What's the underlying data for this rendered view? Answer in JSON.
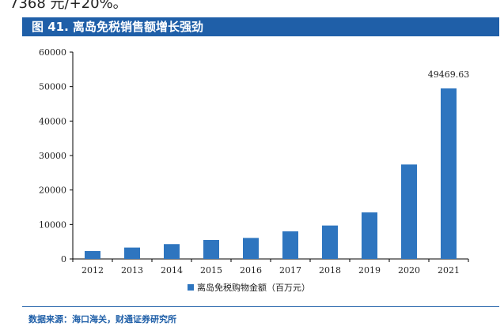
{
  "header_text": "7368 元/+20%。",
  "figure_title": "图 41. 离岛免税销售额增长强劲",
  "source": "数据来源：海口海关，财通证券研究所",
  "colors": {
    "accent": "#1f5fa8",
    "bar": "#2e75bf"
  },
  "chart_data": {
    "type": "bar",
    "categories": [
      "2012",
      "2013",
      "2014",
      "2015",
      "2016",
      "2017",
      "2018",
      "2019",
      "2020",
      "2021"
    ],
    "series": [
      {
        "name": "离岛免税购物金额（百万元）",
        "values": [
          2300,
          3300,
          4300,
          5500,
          6100,
          8000,
          9700,
          13500,
          27400,
          49469.63
        ]
      }
    ],
    "ylim": [
      0,
      60000
    ],
    "yticks": [
      0,
      10000,
      20000,
      30000,
      40000,
      50000,
      60000
    ],
    "data_labels": [
      {
        "category": "2021",
        "text": "49469.63"
      }
    ],
    "legend": "bottom-center",
    "grid": false
  }
}
